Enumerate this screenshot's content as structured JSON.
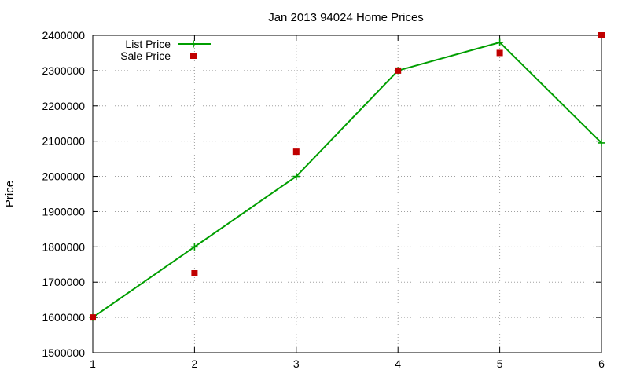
{
  "chart_data": {
    "type": "line",
    "title": "Jan 2013 94024 Home Prices",
    "xlabel": "",
    "ylabel": "Price",
    "x": [
      1,
      2,
      3,
      4,
      5,
      6
    ],
    "xlim": [
      1,
      6
    ],
    "ylim": [
      1500000,
      2400000
    ],
    "xticks": [
      "1",
      "2",
      "3",
      "4",
      "5",
      "6"
    ],
    "yticks": [
      "1500000",
      "1600000",
      "1700000",
      "1800000",
      "1900000",
      "2000000",
      "2100000",
      "2200000",
      "2300000",
      "2400000"
    ],
    "grid": true,
    "legend_position": "top-left",
    "series": [
      {
        "name": "List Price",
        "style": "line+plus-markers",
        "color": "#009e00",
        "values": [
          1600000,
          1800000,
          2000000,
          2300000,
          2380000,
          2095000
        ]
      },
      {
        "name": "Sale Price",
        "style": "square-markers",
        "color": "#c00000",
        "values": [
          1600000,
          1725000,
          2070000,
          2300000,
          2350000,
          2400000
        ]
      }
    ]
  }
}
